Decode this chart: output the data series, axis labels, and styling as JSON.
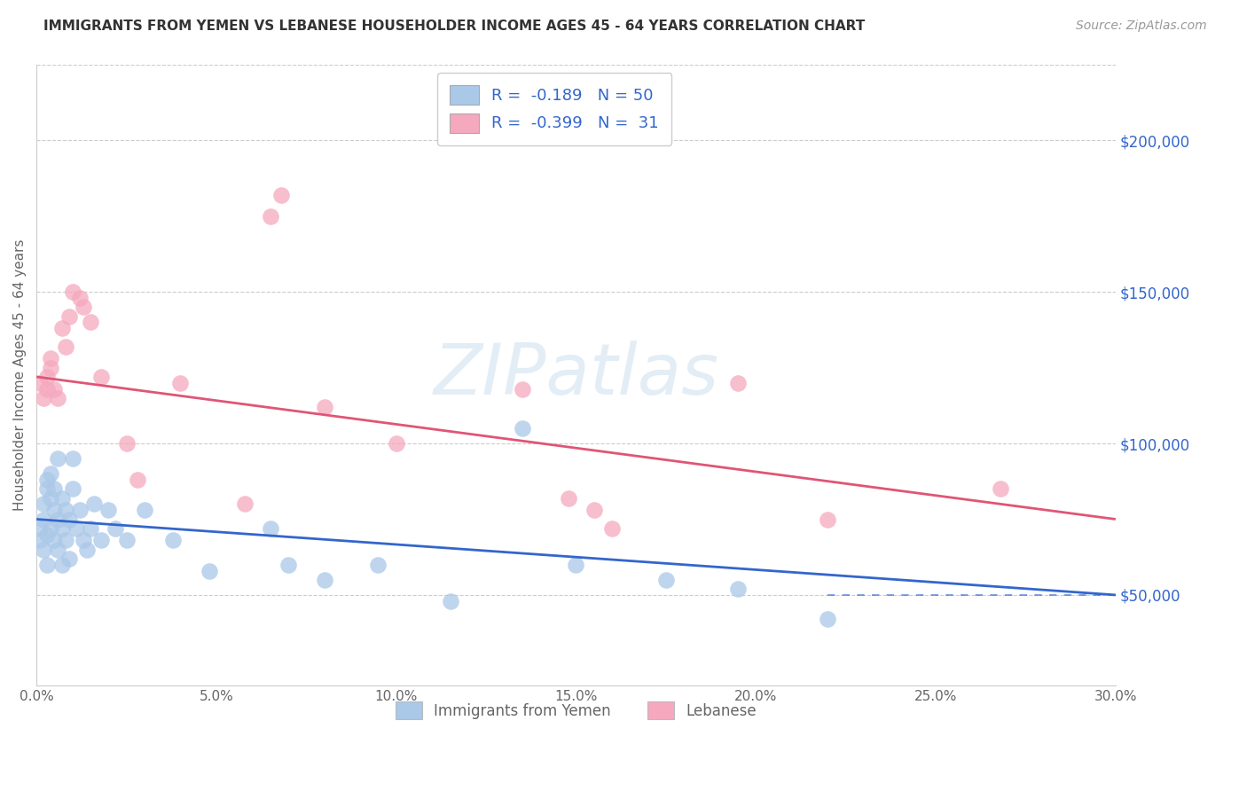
{
  "title": "IMMIGRANTS FROM YEMEN VS LEBANESE HOUSEHOLDER INCOME AGES 45 - 64 YEARS CORRELATION CHART",
  "source": "Source: ZipAtlas.com",
  "ylabel": "Householder Income Ages 45 - 64 years",
  "xlim": [
    0.0,
    0.3
  ],
  "ylim": [
    20000,
    225000
  ],
  "xtick_labels": [
    "0.0%",
    "5.0%",
    "10.0%",
    "15.0%",
    "20.0%",
    "25.0%",
    "30.0%"
  ],
  "xtick_values": [
    0.0,
    0.05,
    0.1,
    0.15,
    0.2,
    0.25,
    0.3
  ],
  "ytick_labels": [
    "$50,000",
    "$100,000",
    "$150,000",
    "$200,000"
  ],
  "ytick_values": [
    50000,
    100000,
    150000,
    200000
  ],
  "watermark": "ZIPatlas",
  "legend_r_yemen": "-0.189",
  "legend_n_yemen": "50",
  "legend_r_lebanese": "-0.399",
  "legend_n_lebanese": "31",
  "color_yemen": "#aac8e8",
  "color_lebanese": "#f5a8be",
  "line_color_yemen": "#3366cc",
  "line_color_lebanese": "#e05575",
  "title_color": "#333333",
  "source_color": "#999999",
  "grid_color": "#cccccc",
  "tick_color": "#666666",
  "ylabel_color": "#666666",
  "right_ytick_color": "#3366cc",
  "watermark_color": "#ccdff0",
  "yemen_x": [
    0.001,
    0.001,
    0.002,
    0.002,
    0.002,
    0.003,
    0.003,
    0.003,
    0.003,
    0.004,
    0.004,
    0.004,
    0.005,
    0.005,
    0.005,
    0.006,
    0.006,
    0.006,
    0.007,
    0.007,
    0.007,
    0.008,
    0.008,
    0.009,
    0.009,
    0.01,
    0.01,
    0.011,
    0.012,
    0.013,
    0.014,
    0.015,
    0.016,
    0.018,
    0.02,
    0.022,
    0.025,
    0.03,
    0.038,
    0.048,
    0.065,
    0.07,
    0.08,
    0.095,
    0.115,
    0.135,
    0.15,
    0.175,
    0.195,
    0.22
  ],
  "yemen_y": [
    68000,
    72000,
    75000,
    65000,
    80000,
    85000,
    70000,
    60000,
    88000,
    82000,
    72000,
    90000,
    78000,
    68000,
    85000,
    75000,
    95000,
    65000,
    72000,
    82000,
    60000,
    78000,
    68000,
    75000,
    62000,
    85000,
    95000,
    72000,
    78000,
    68000,
    65000,
    72000,
    80000,
    68000,
    78000,
    72000,
    68000,
    78000,
    68000,
    58000,
    72000,
    60000,
    55000,
    60000,
    48000,
    105000,
    60000,
    55000,
    52000,
    42000
  ],
  "lebanese_x": [
    0.001,
    0.002,
    0.003,
    0.003,
    0.004,
    0.004,
    0.005,
    0.006,
    0.007,
    0.008,
    0.009,
    0.01,
    0.012,
    0.013,
    0.015,
    0.018,
    0.025,
    0.028,
    0.04,
    0.058,
    0.065,
    0.068,
    0.08,
    0.1,
    0.135,
    0.148,
    0.155,
    0.16,
    0.195,
    0.22,
    0.268
  ],
  "lebanese_y": [
    120000,
    115000,
    122000,
    118000,
    128000,
    125000,
    118000,
    115000,
    138000,
    132000,
    142000,
    150000,
    148000,
    145000,
    140000,
    122000,
    100000,
    88000,
    120000,
    80000,
    175000,
    182000,
    112000,
    100000,
    118000,
    82000,
    78000,
    72000,
    120000,
    75000,
    85000
  ]
}
